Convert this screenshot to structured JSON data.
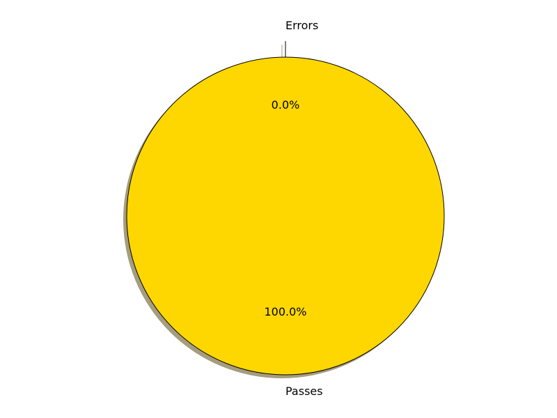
{
  "chart_data": {
    "type": "pie",
    "categories": [
      "Errors",
      "Passes"
    ],
    "values": [
      0.0,
      100.0
    ],
    "percent_labels": [
      "0.0%",
      "100.0%"
    ],
    "colors": [
      "#ff0000",
      "#ffd700"
    ],
    "shadow": true,
    "exploded": "Errors",
    "legend": "none",
    "title": ""
  }
}
